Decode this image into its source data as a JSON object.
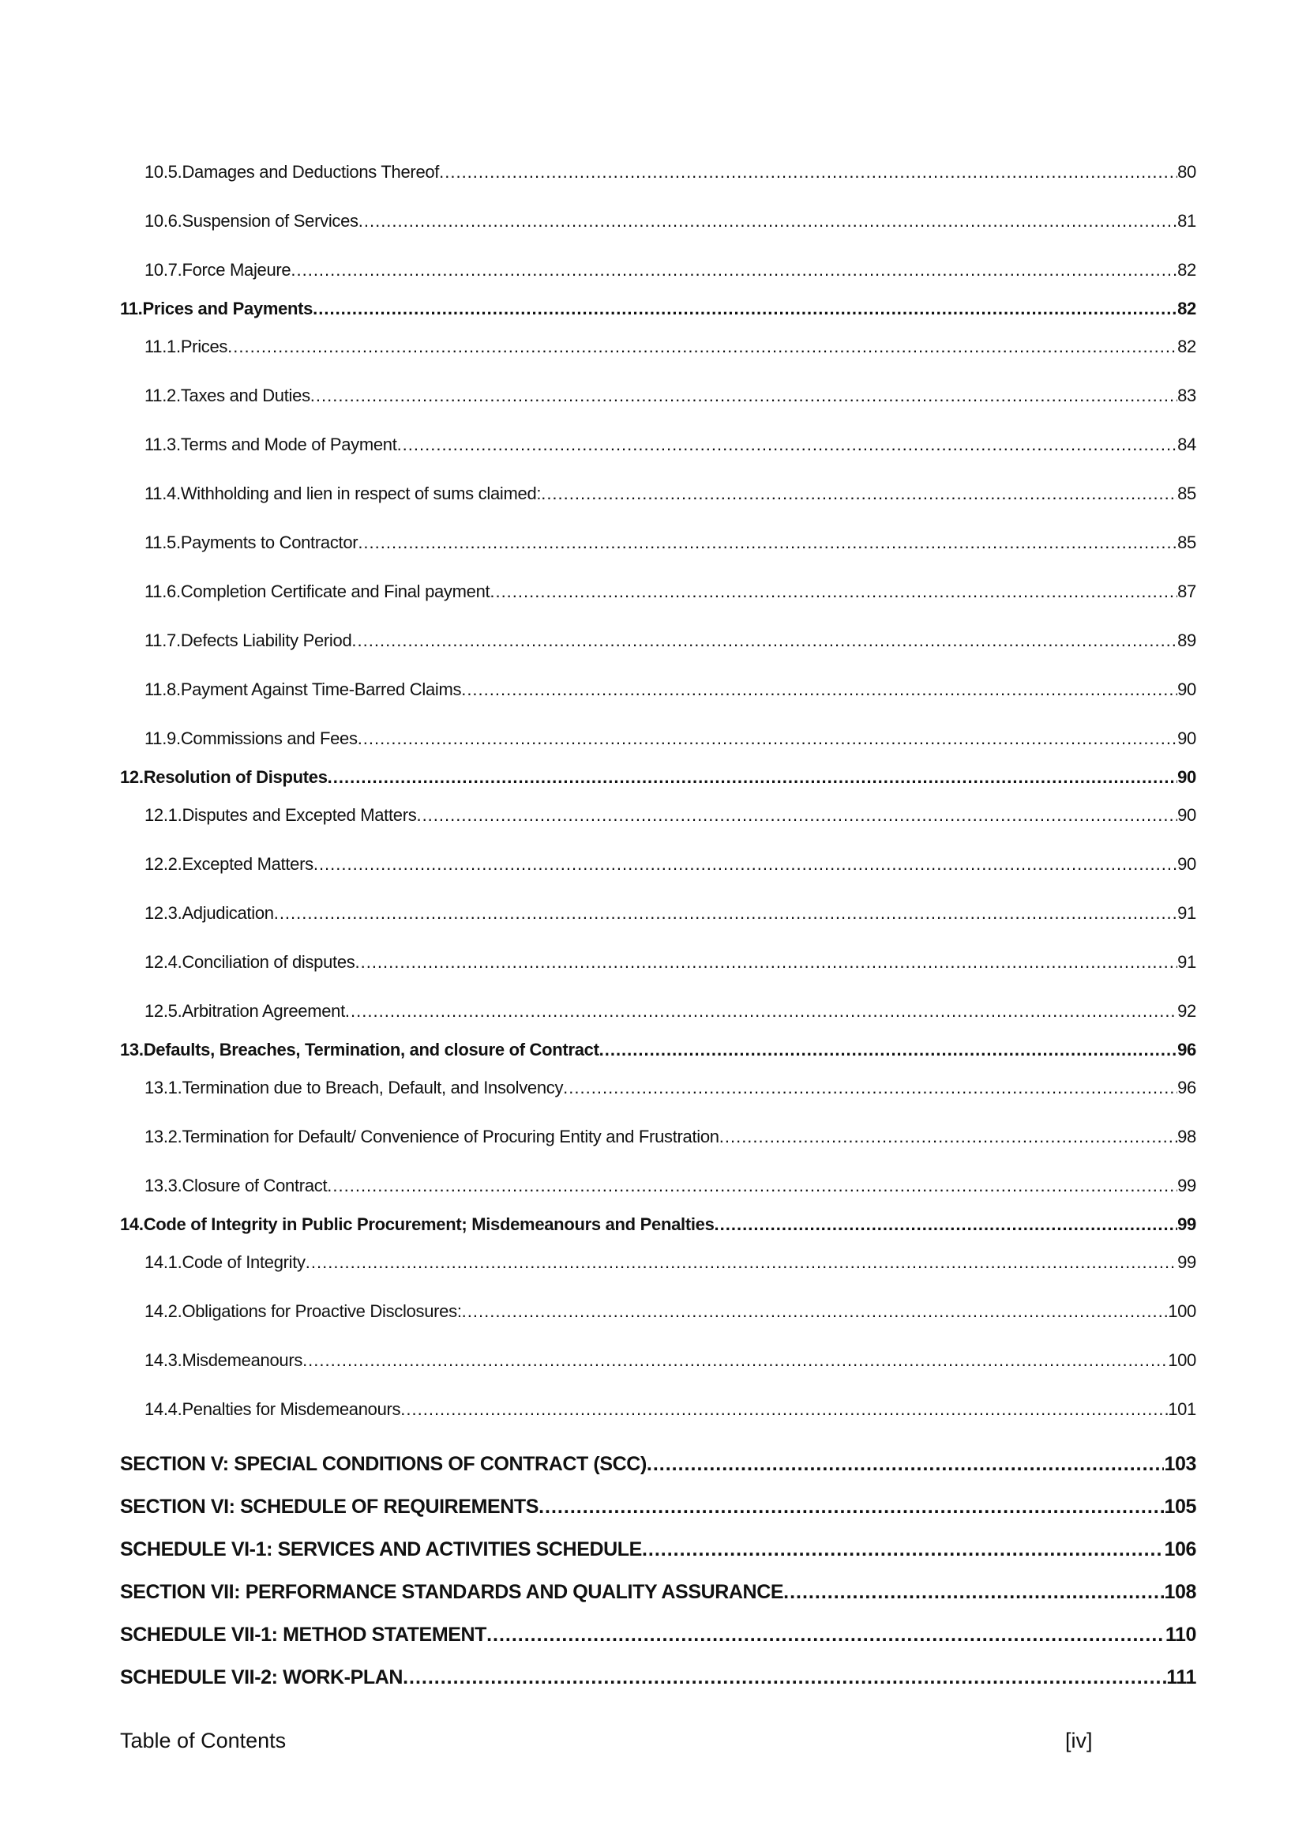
{
  "entries": [
    {
      "level": "sub",
      "num": "10.5.",
      "title": "Damages and Deductions Thereof",
      "page": "80"
    },
    {
      "level": "sub",
      "num": "10.6.",
      "title": "Suspension of Services",
      "page": "81"
    },
    {
      "level": "sub",
      "num": "10.7.",
      "title": "Force Majeure",
      "page": "82"
    },
    {
      "level": "main",
      "num": "11.",
      "title": "Prices and Payments",
      "page": "82"
    },
    {
      "level": "sub",
      "num": "11.1.",
      "title": "Prices",
      "page": "82"
    },
    {
      "level": "sub",
      "num": "11.2.",
      "title": "Taxes and Duties",
      "page": "83"
    },
    {
      "level": "sub",
      "num": "11.3.",
      "title": "Terms and Mode of Payment",
      "page": "84"
    },
    {
      "level": "sub",
      "num": "11.4.",
      "title": "Withholding and lien in respect of sums claimed:",
      "page": "85"
    },
    {
      "level": "sub",
      "num": "11.5.",
      "title": "Payments to Contractor",
      "page": "85"
    },
    {
      "level": "sub",
      "num": "11.6.",
      "title": "Completion Certificate and Final payment",
      "page": "87"
    },
    {
      "level": "sub",
      "num": "11.7.",
      "title": "Defects Liability Period",
      "page": "89"
    },
    {
      "level": "sub",
      "num": "11.8.",
      "title": "Payment Against Time-Barred Claims",
      "page": "90"
    },
    {
      "level": "sub",
      "num": "11.9.",
      "title": "Commissions and Fees",
      "page": "90"
    },
    {
      "level": "main",
      "num": "12.",
      "title": "Resolution of Disputes",
      "page": "90"
    },
    {
      "level": "sub",
      "num": "12.1.",
      "title": "Disputes and Excepted Matters",
      "page": "90"
    },
    {
      "level": "sub",
      "num": "12.2.",
      "title": "Excepted Matters",
      "page": "90"
    },
    {
      "level": "sub",
      "num": "12.3.",
      "title": "Adjudication",
      "page": "91"
    },
    {
      "level": "sub",
      "num": "12.4.",
      "title": "Conciliation of disputes",
      "page": "91"
    },
    {
      "level": "sub",
      "num": "12.5.",
      "title": "Arbitration Agreement",
      "page": "92"
    },
    {
      "level": "main",
      "num": "13.",
      "title": "Defaults, Breaches, Termination, and closure of Contract",
      "page": "96"
    },
    {
      "level": "sub",
      "num": "13.1.",
      "title": "Termination due to Breach, Default, and Insolvency",
      "page": "96"
    },
    {
      "level": "sub",
      "num": "13.2.",
      "title": "Termination for Default/ Convenience of Procuring Entity and Frustration",
      "page": "98"
    },
    {
      "level": "sub",
      "num": "13.3.",
      "title": "Closure of Contract",
      "page": "99"
    },
    {
      "level": "main",
      "num": "14.",
      "title": "Code of Integrity in Public Procurement; Misdemeanours and Penalties",
      "page": "99"
    },
    {
      "level": "sub",
      "num": "14.1.",
      "title": "Code of Integrity",
      "page": "99"
    },
    {
      "level": "sub",
      "num": "14.2.",
      "title": "Obligations for Proactive Disclosures:",
      "page": "100"
    },
    {
      "level": "sub",
      "num": "14.3.",
      "title": "Misdemeanours",
      "page": "100"
    },
    {
      "level": "sub",
      "num": "14.4.",
      "title": "Penalties for Misdemeanours",
      "page": "101"
    },
    {
      "level": "sec",
      "num": "",
      "title": "SECTION V: SPECIAL CONDITIONS OF CONTRACT (SCC)",
      "page": "103"
    },
    {
      "level": "sec",
      "num": "",
      "title": "SECTION VI: SCHEDULE OF REQUIREMENTS",
      "page": "105"
    },
    {
      "level": "sec",
      "num": "",
      "title": "SCHEDULE VI-1: SERVICES AND ACTIVITIES SCHEDULE",
      "page": "106"
    },
    {
      "level": "sec",
      "num": "",
      "title": "SECTION VII: PERFORMANCE STANDARDS AND QUALITY ASSURANCE",
      "page": "108"
    },
    {
      "level": "sec",
      "num": "",
      "title": "SCHEDULE VII-1: METHOD STATEMENT",
      "page": "110"
    },
    {
      "level": "sec",
      "num": "",
      "title": "SCHEDULE VII-2: WORK-PLAN",
      "page": "111"
    }
  ],
  "footer": {
    "left": "Table of Contents",
    "page_label": "[iv]"
  }
}
